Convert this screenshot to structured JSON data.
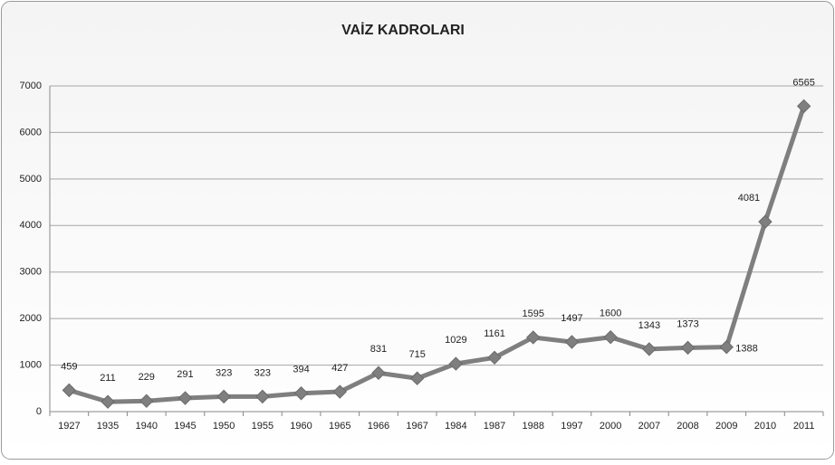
{
  "chart_data": {
    "type": "line",
    "title": "VAİZ KADROLARI",
    "categories": [
      "1927",
      "1935",
      "1940",
      "1945",
      "1950",
      "1955",
      "1960",
      "1965",
      "1966",
      "1967",
      "1984",
      "1987",
      "1988",
      "1997",
      "2000",
      "2007",
      "2008",
      "2009",
      "2010",
      "2011"
    ],
    "series": [
      {
        "color": "#7f7f7f",
        "values": [
          459,
          211,
          229,
          291,
          323,
          323,
          394,
          427,
          831,
          715,
          1029,
          1161,
          1595,
          1497,
          1600,
          1343,
          1373,
          1388,
          4081,
          6565
        ]
      }
    ],
    "ylim": [
      0,
      7000
    ],
    "yticks": [
      0,
      1000,
      2000,
      3000,
      4000,
      5000,
      6000,
      7000
    ],
    "grid": true
  }
}
